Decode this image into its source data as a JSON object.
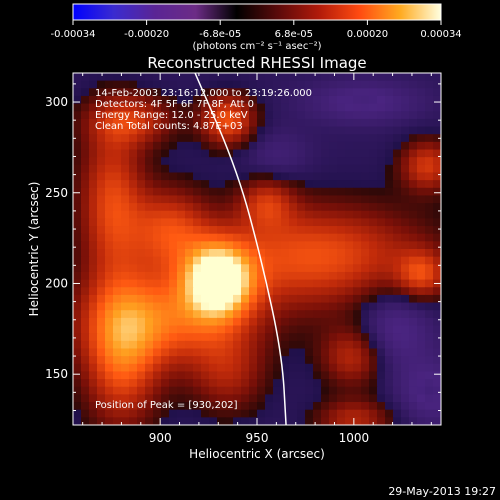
{
  "chart_data": {
    "type": "heatmap",
    "title": "Reconstructed RHESSI Image",
    "info_lines": [
      "14-Feb-2003 23:16:12.000 to 23:19:26.000",
      "Detectors: 4F 5F 6F 7F 8F, Att 0",
      "Energy Range: 12.0 - 25.0 keV",
      "Clean     Total counts: 4.87E+03"
    ],
    "peak_text": "Position of Peak = [930,202]",
    "xlabel": "Heliocentric X (arcsec)",
    "ylabel": "Heliocentric Y (arcsec)",
    "xlim": [
      855,
      1045
    ],
    "ylim": [
      122,
      316
    ],
    "x_ticks": [
      900,
      950,
      1000
    ],
    "y_ticks": [
      150,
      200,
      250,
      300
    ],
    "colorbar": {
      "range": [
        -0.00034,
        0.00034
      ],
      "tick_labels": [
        "-0.00034",
        "-0.00020",
        "-6.8e-05",
        "6.8e-05",
        "0.00020",
        "0.00034"
      ],
      "unit_label": "(photons cm⁻² s⁻¹ asec⁻²)",
      "colormap": [
        "#0000ff",
        "#3a2bd0",
        "#5a2595",
        "#6c2c86",
        "#000000",
        "#5a0a0a",
        "#b01a0a",
        "#ff4a10",
        "#ffaa20",
        "#ffffe0"
      ]
    },
    "peak": {
      "x": 930,
      "y": 202
    },
    "limb_curve": [
      [
        918,
        316
      ],
      [
        940,
        262
      ],
      [
        953,
        210
      ],
      [
        963,
        160
      ],
      [
        965,
        122
      ]
    ],
    "emission_blobs": [
      {
        "x": 930,
        "y": 202,
        "sx": 12,
        "sy": 14,
        "v": 1.0
      },
      {
        "x": 905,
        "y": 180,
        "sx": 30,
        "sy": 18,
        "v": 0.55
      },
      {
        "x": 880,
        "y": 160,
        "sx": 14,
        "sy": 28,
        "v": 0.55
      },
      {
        "x": 875,
        "y": 245,
        "sx": 12,
        "sy": 30,
        "v": 0.5
      },
      {
        "x": 905,
        "y": 230,
        "sx": 14,
        "sy": 16,
        "v": 0.45
      },
      {
        "x": 980,
        "y": 215,
        "sx": 40,
        "sy": 20,
        "v": 0.55
      },
      {
        "x": 1000,
        "y": 160,
        "sx": 12,
        "sy": 12,
        "v": 0.4
      },
      {
        "x": 935,
        "y": 290,
        "sx": 10,
        "sy": 10,
        "v": 0.55
      },
      {
        "x": 885,
        "y": 290,
        "sx": 16,
        "sy": 10,
        "v": 0.4
      },
      {
        "x": 1038,
        "y": 265,
        "sx": 10,
        "sy": 10,
        "v": 0.45
      },
      {
        "x": 1000,
        "y": 125,
        "sx": 14,
        "sy": 8,
        "v": 0.35
      },
      {
        "x": 1035,
        "y": 205,
        "sx": 9,
        "sy": 9,
        "v": 0.4
      },
      {
        "x": 955,
        "y": 245,
        "sx": 10,
        "sy": 10,
        "v": 0.35
      },
      {
        "x": 935,
        "y": 150,
        "sx": 14,
        "sy": 16,
        "v": 0.3
      },
      {
        "x": 1005,
        "y": 300,
        "sx": 20,
        "sy": 8,
        "v": -0.25
      },
      {
        "x": 1020,
        "y": 175,
        "sx": 14,
        "sy": 16,
        "v": -0.3
      },
      {
        "x": 1040,
        "y": 140,
        "sx": 12,
        "sy": 12,
        "v": -0.25
      },
      {
        "x": 960,
        "y": 270,
        "sx": 12,
        "sy": 10,
        "v": -0.15
      }
    ],
    "grid": false
  },
  "footer_date": "29-May-2013 19:27"
}
